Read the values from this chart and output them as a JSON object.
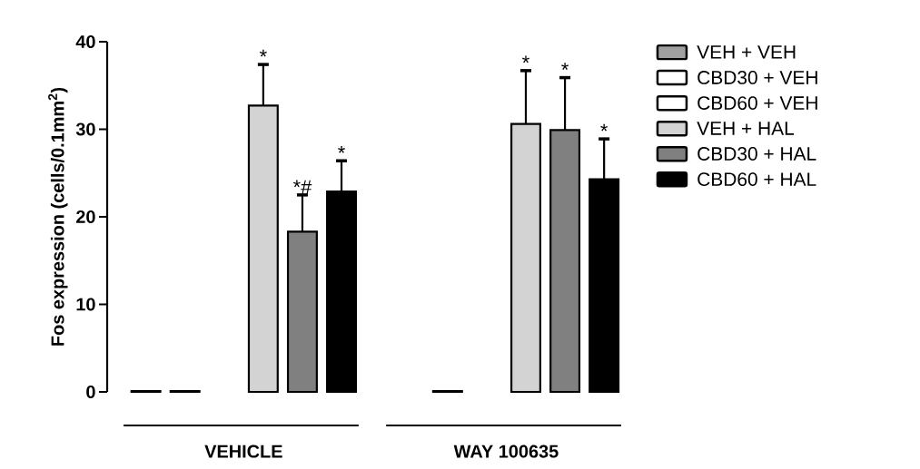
{
  "chart_data": {
    "type": "bar",
    "ylabel": "Fos expression (cells/0.1mm$^{2}$)",
    "categories": [
      "VEHICLE",
      "WAY 100635"
    ],
    "series": [
      {
        "name": "VEH + VEH",
        "color": "#a0a0a0",
        "values": [
          0.1,
          null
        ]
      },
      {
        "name": "CBD30 + VEH",
        "color": "#ffffff",
        "values": [
          0.1,
          0.1
        ]
      },
      {
        "name": "CBD60 + VEH",
        "color": "#ffffff",
        "values": [
          null,
          null
        ]
      },
      {
        "name": "VEH + HAL",
        "color": "#d3d3d3",
        "values": [
          32.7,
          30.6
        ],
        "errors": [
          4.7,
          6.1
        ]
      },
      {
        "name": "CBD30 + HAL",
        "color": "#808080",
        "values": [
          18.3,
          29.9
        ],
        "errors": [
          4.2,
          6.0
        ]
      },
      {
        "name": "CBD60 + HAL",
        "color": "#000000",
        "values": [
          22.9,
          24.3
        ],
        "errors": [
          3.5,
          4.6
        ]
      }
    ],
    "ylim": [
      0,
      40
    ],
    "yticks": [
      0,
      10,
      20,
      30,
      40
    ],
    "legend": "right",
    "grid": false,
    "annotations": [
      "*",
      "*#",
      "*",
      "*",
      "*",
      "*"
    ]
  }
}
